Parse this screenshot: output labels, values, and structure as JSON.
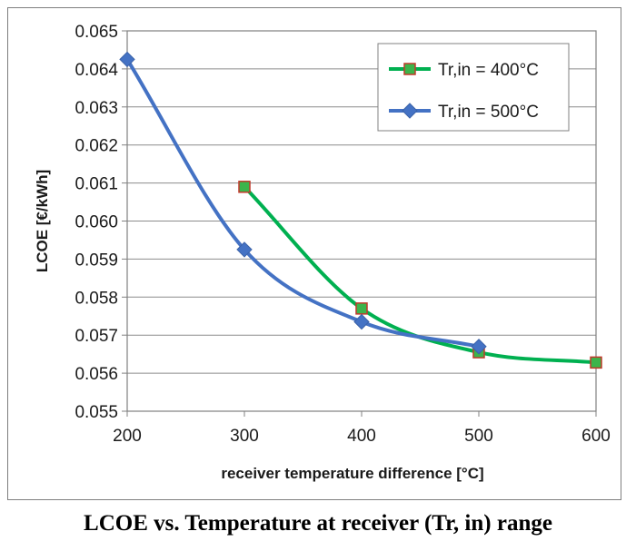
{
  "caption": "LCOE vs. Temperature at receiver (Tr, in) range",
  "chart_data": {
    "type": "line",
    "xlabel": "receiver temperature difference  [°C]",
    "ylabel": "LCOE [€/kWh]",
    "xlim": [
      200,
      600
    ],
    "ylim": [
      0.055,
      0.065
    ],
    "xticks": [
      "200",
      "300",
      "400",
      "500",
      "600"
    ],
    "yticks": [
      "0.055",
      "0.056",
      "0.057",
      "0.058",
      "0.059",
      "0.060",
      "0.061",
      "0.062",
      "0.063",
      "0.064",
      "0.065"
    ],
    "grid": true,
    "legend_position": "top-right",
    "series": [
      {
        "name": "Tr,in = 400°C",
        "color": "#00b050",
        "marker": "square",
        "marker_fill": "#3cb44b",
        "marker_edge": "#c0392b",
        "x": [
          300,
          400,
          500,
          600
        ],
        "y": [
          0.0609,
          0.0577,
          0.05655,
          0.05628
        ]
      },
      {
        "name": "Tr,in = 500°C",
        "color": "#4472c4",
        "marker": "diamond",
        "marker_fill": "#4472c4",
        "x": [
          200,
          300,
          400,
          500
        ],
        "y": [
          0.06425,
          0.05925,
          0.05735,
          0.0567
        ]
      }
    ]
  }
}
